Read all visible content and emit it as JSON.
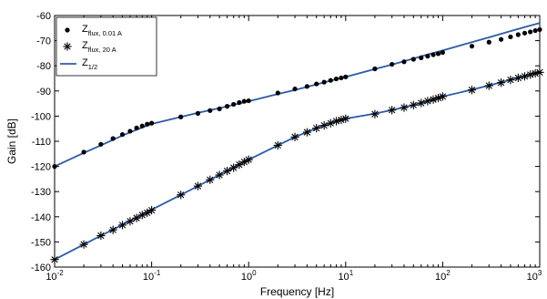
{
  "chart_data": {
    "type": "scatter",
    "title": "",
    "xlabel": "Frequency [Hz]",
    "ylabel": "Gain [dB]",
    "xscale": "log",
    "xlim": [
      0.01,
      1000
    ],
    "ylim": [
      -160,
      -60
    ],
    "grid": false,
    "legend_position": "top-left",
    "x_tick_labels": [
      {
        "base": "10",
        "exp": "-2"
      },
      {
        "base": "10",
        "exp": "-1"
      },
      {
        "base": "10",
        "exp": "0"
      },
      {
        "base": "10",
        "exp": "1"
      },
      {
        "base": "10",
        "exp": "2"
      },
      {
        "base": "10",
        "exp": "3"
      }
    ],
    "y_ticks": [
      -60,
      -70,
      -80,
      -90,
      -100,
      -110,
      -120,
      -130,
      -140,
      -150,
      -160
    ],
    "legend": [
      {
        "main": "Z",
        "sub": "flux, 0.01 A",
        "marker": "dot"
      },
      {
        "main": "Z",
        "sub": "flux, 20 A",
        "marker": "star"
      },
      {
        "main": "Z",
        "sub": "1/2",
        "marker": "line"
      }
    ],
    "series": [
      {
        "marker": "dot",
        "color": "#000000",
        "x": [
          0.01,
          0.02,
          0.03,
          0.04,
          0.05,
          0.06,
          0.07,
          0.08,
          0.09,
          0.1,
          0.2,
          0.3,
          0.4,
          0.5,
          0.6,
          0.7,
          0.8,
          0.9,
          1,
          2,
          3,
          4,
          5,
          6,
          7,
          8,
          9,
          10,
          20,
          30,
          40,
          50,
          60,
          70,
          80,
          90,
          100,
          200,
          300,
          400,
          500,
          600,
          700,
          800,
          900,
          1000
        ],
        "y": [
          -120,
          -114.3,
          -111.2,
          -108.9,
          -107.3,
          -106,
          -104.7,
          -103.9,
          -103.2,
          -102.8,
          -100.3,
          -98.9,
          -97.8,
          -97.1,
          -96.1,
          -95.3,
          -94.6,
          -94.1,
          -93.9,
          -90.8,
          -89.2,
          -88.2,
          -87.2,
          -86.5,
          -85.8,
          -85.2,
          -84.8,
          -84.4,
          -81.2,
          -79.4,
          -78.4,
          -77.4,
          -76.8,
          -76.2,
          -75.6,
          -75.2,
          -74.7,
          -72.2,
          -70.6,
          -69.5,
          -68.5,
          -67.6,
          -67,
          -66.5,
          -66,
          -65.6
        ]
      },
      {
        "marker": "star",
        "color": "#000000",
        "x": [
          0.01,
          0.02,
          0.03,
          0.04,
          0.05,
          0.06,
          0.07,
          0.08,
          0.09,
          0.1,
          0.2,
          0.3,
          0.4,
          0.5,
          0.6,
          0.7,
          0.8,
          0.9,
          1,
          2,
          3,
          4,
          5,
          6,
          7,
          8,
          9,
          10,
          20,
          30,
          40,
          50,
          60,
          70,
          80,
          90,
          100,
          200,
          300,
          400,
          500,
          600,
          700,
          800,
          900,
          1000
        ],
        "y": [
          -157,
          -151,
          -147.5,
          -145.2,
          -143.3,
          -141.8,
          -140.5,
          -139.3,
          -138.4,
          -137.4,
          -131.3,
          -127.8,
          -125.3,
          -123.4,
          -121.8,
          -120.5,
          -119.3,
          -118.2,
          -117.3,
          -111.6,
          -108.3,
          -106.4,
          -104.8,
          -103.7,
          -102.8,
          -102,
          -101.5,
          -101,
          -99.2,
          -97.6,
          -96.6,
          -95.6,
          -94.8,
          -94,
          -93.4,
          -92.8,
          -92.2,
          -89.6,
          -87.9,
          -86.7,
          -85.6,
          -84.8,
          -84.2,
          -83.5,
          -83,
          -82.6
        ]
      },
      {
        "name": "Z1/2 (0.01 A)",
        "marker": "line",
        "color": "#2b5ba8",
        "x": [
          0.01,
          0.02,
          0.03,
          0.05,
          0.07,
          0.1,
          0.2,
          0.3,
          0.5,
          0.7,
          1,
          2,
          3,
          5,
          7,
          10,
          20,
          30,
          50,
          70,
          100,
          200,
          300,
          500,
          700,
          1000
        ],
        "y": [
          -120,
          -114.6,
          -111.6,
          -107.7,
          -105.4,
          -103.1,
          -100.3,
          -98.7,
          -96.8,
          -95.5,
          -94.1,
          -91.2,
          -89.6,
          -87.4,
          -85.9,
          -84.4,
          -81.3,
          -79.5,
          -77.1,
          -75.5,
          -73.9,
          -70.6,
          -68.7,
          -66.2,
          -64.6,
          -63
        ]
      },
      {
        "name": "Z1/2 (20 A)",
        "marker": "line",
        "color": "#2b5ba8",
        "x": [
          0.01,
          0.02,
          0.03,
          0.05,
          0.07,
          0.1,
          0.2,
          0.3,
          0.5,
          0.7,
          1,
          2,
          3,
          5,
          7,
          10,
          20,
          30,
          50,
          70,
          100,
          200,
          300,
          500,
          700,
          1000
        ],
        "y": [
          -157,
          -151,
          -147.5,
          -143.2,
          -140.3,
          -137.2,
          -131.3,
          -127.8,
          -123.4,
          -120.5,
          -117.3,
          -111.6,
          -108.3,
          -104.8,
          -102.8,
          -101,
          -99,
          -97.6,
          -95.6,
          -94,
          -92.2,
          -89.5,
          -87.8,
          -85.6,
          -84,
          -82.4
        ]
      }
    ]
  }
}
